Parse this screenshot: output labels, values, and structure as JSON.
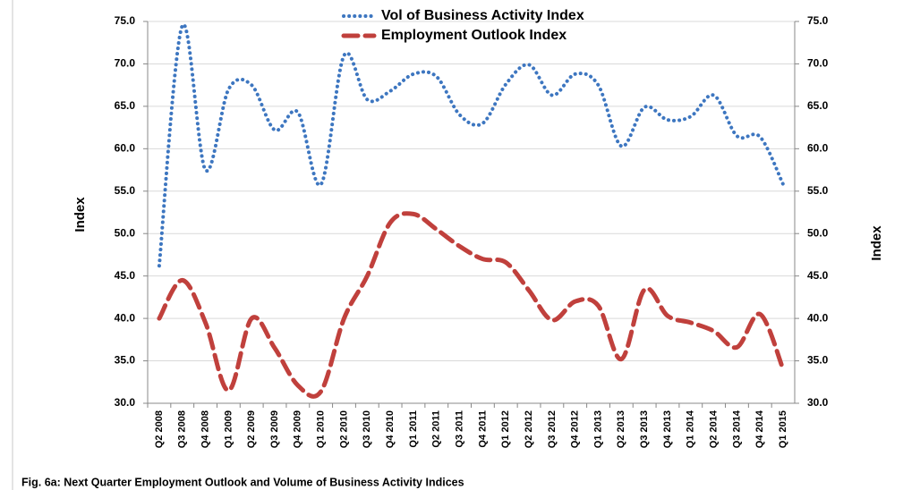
{
  "chart_data": {
    "type": "line",
    "caption": "Fig. 6a: Next Quarter  Employment Outlook and Volume of Business Activity Indices",
    "ylabel": "Index",
    "y2label": "Index",
    "categories": [
      "Q2 2008",
      "Q3 2008",
      "Q4 2008",
      "Q1 2009",
      "Q2 2009",
      "Q3 2009",
      "Q4 2009",
      "Q1 2010",
      "Q2 2010",
      "Q3 2010",
      "Q4 2010",
      "Q1 2011",
      "Q2 2011",
      "Q3 2011",
      "Q4 2011",
      "Q1 2012",
      "Q2 2012",
      "Q3 2012",
      "Q4 2012",
      "Q1 2013",
      "Q2 2013",
      "Q3 2013",
      "Q4 2013",
      "Q1 2014",
      "Q2 2014",
      "Q3 2014",
      "Q4 2014",
      "Q1 2015"
    ],
    "series": [
      {
        "name": "Vol of Business Activity Index",
        "color": "#3d76c0",
        "style": "dotted",
        "values": [
          46.2,
          74.5,
          57.5,
          67.0,
          67.5,
          62.2,
          64.3,
          55.8,
          71.0,
          65.8,
          66.8,
          68.8,
          68.5,
          64.0,
          63.0,
          67.6,
          69.9,
          66.3,
          68.8,
          67.5,
          60.3,
          64.9,
          63.4,
          63.8,
          66.3,
          61.5,
          61.4,
          55.8
        ]
      },
      {
        "name": "Employment Outlook Index",
        "color": "#c0403c",
        "style": "dashed",
        "values": [
          40.0,
          44.5,
          39.5,
          31.5,
          40.0,
          36.5,
          32.1,
          31.4,
          40.0,
          45.0,
          51.3,
          52.3,
          50.5,
          48.5,
          47.0,
          46.6,
          43.3,
          39.8,
          42.0,
          41.5,
          35.2,
          43.4,
          40.3,
          39.5,
          38.5,
          36.6,
          40.5,
          34.0
        ]
      }
    ],
    "ylim": [
      30,
      75
    ],
    "yticks": [
      {
        "value": 30,
        "label": "30.0"
      },
      {
        "value": 35,
        "label": "35.0"
      },
      {
        "value": 40,
        "label": "40.0"
      },
      {
        "value": 45,
        "label": "45.0"
      },
      {
        "value": 50,
        "label": "50.0"
      },
      {
        "value": 55,
        "label": "55.0"
      },
      {
        "value": 60,
        "label": "60.0"
      },
      {
        "value": 65,
        "label": "65.0"
      },
      {
        "value": 70,
        "label": "70.0"
      },
      {
        "value": 75,
        "label": "75.0"
      }
    ],
    "y2lim": [
      30,
      75
    ],
    "y2ticks": [
      {
        "value": 30,
        "label": "30.0"
      },
      {
        "value": 35,
        "label": "35.0"
      },
      {
        "value": 40,
        "label": "40.0"
      },
      {
        "value": 45,
        "label": "45.0"
      },
      {
        "value": 50,
        "label": "50.0"
      },
      {
        "value": 55,
        "label": "55.0"
      },
      {
        "value": 60,
        "label": "60.0"
      },
      {
        "value": 65,
        "label": "65.0"
      },
      {
        "value": 70,
        "label": "70.0"
      },
      {
        "value": 75,
        "label": "75.0"
      }
    ],
    "grid": true
  }
}
